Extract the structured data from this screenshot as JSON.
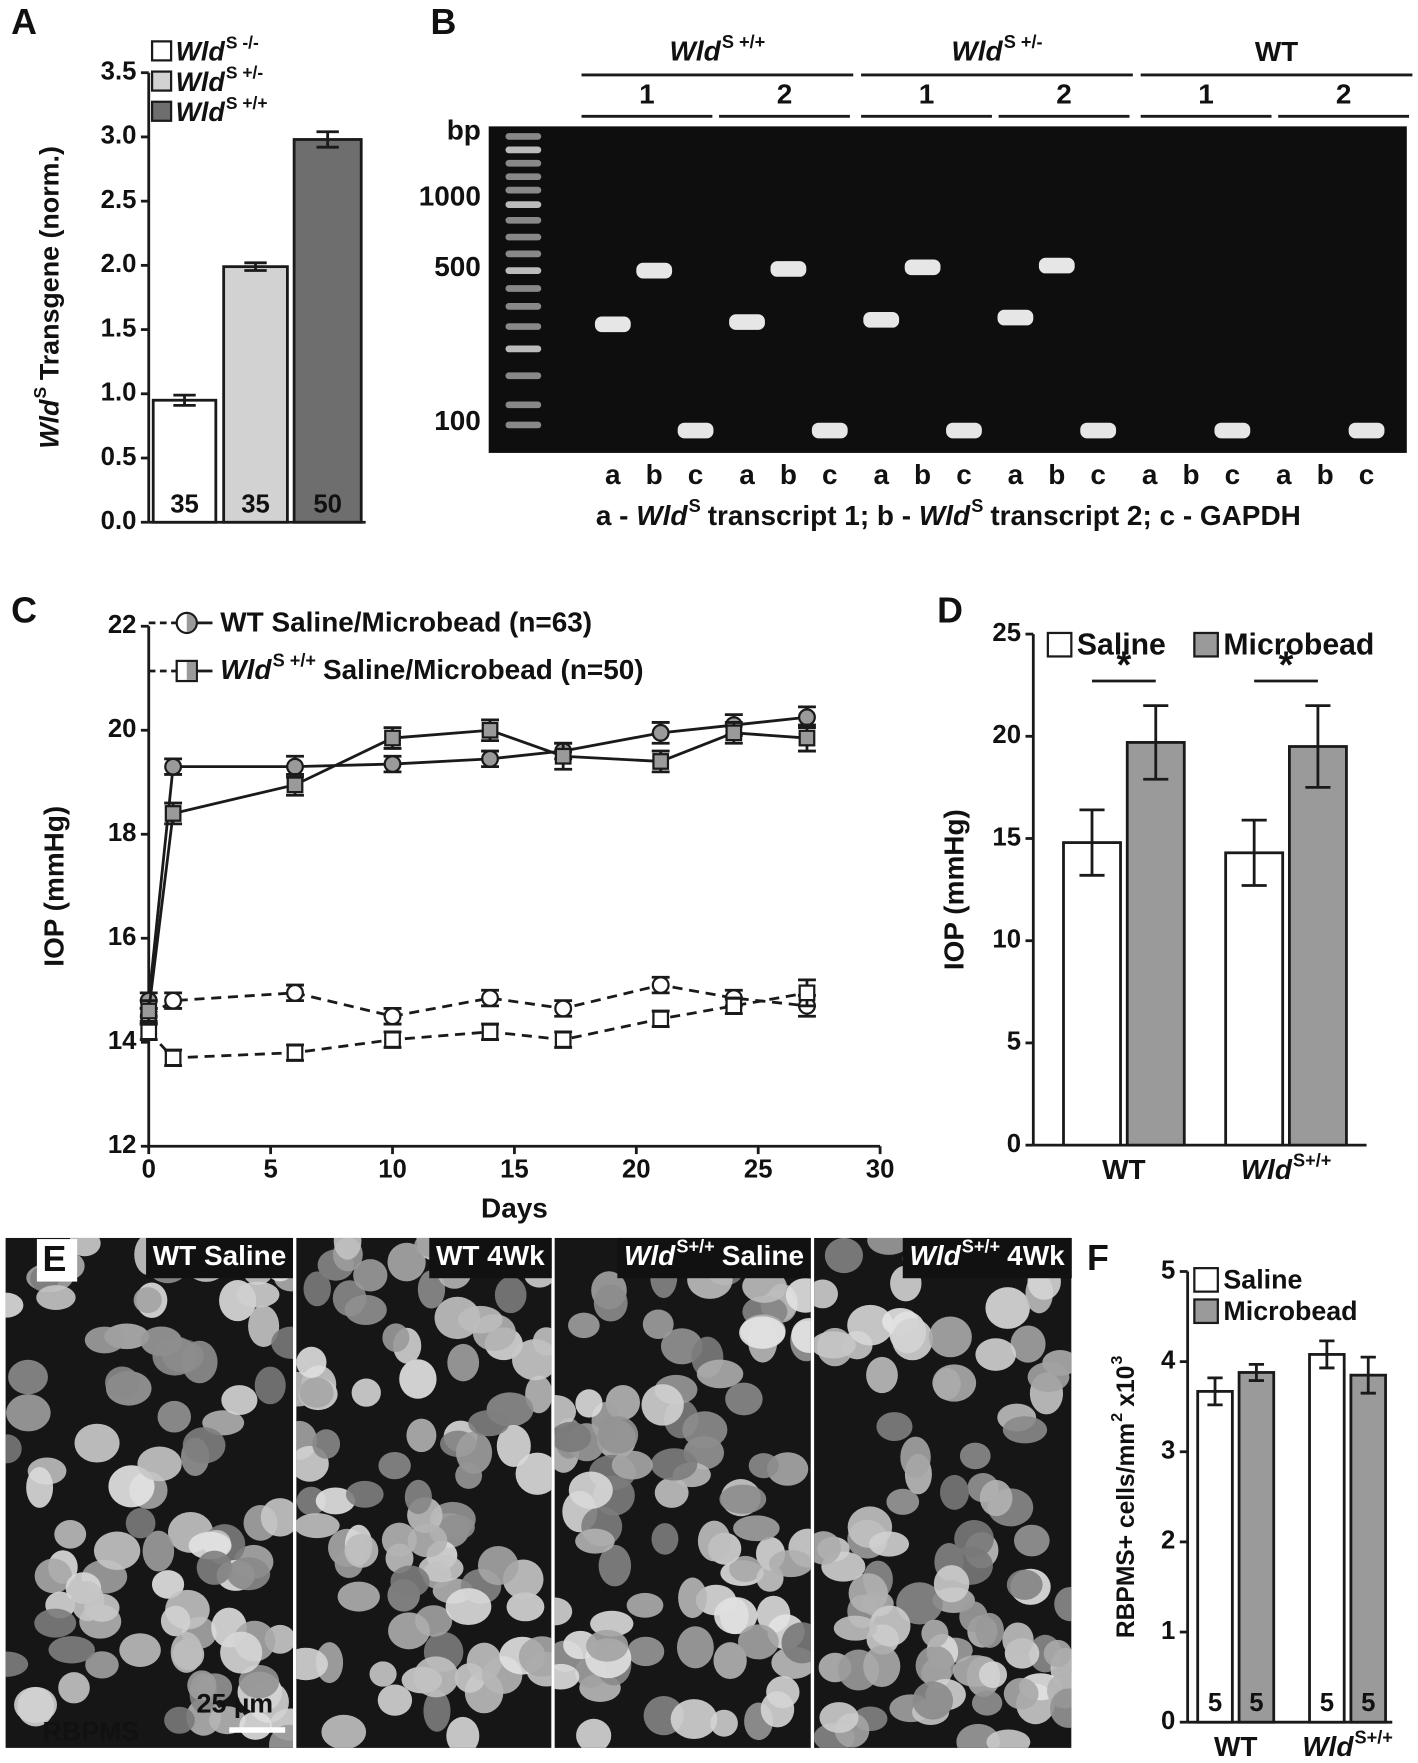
{
  "chart_data": [
    {
      "type": "bar",
      "panel_label": "A",
      "ylabel": [
        {
          "text": "Wld",
          "style": "italic"
        },
        {
          "text": "S",
          "style": "sup"
        },
        {
          "text": "Transgene (norm.)"
        }
      ],
      "series": [
        {
          "name": [
            {
              "text": "Wld",
              "style": "italic"
            },
            {
              "text": "S -/-",
              "style": "sup"
            }
          ],
          "color": "#ffffff",
          "values": [
            0.95
          ],
          "errors": [
            0.04
          ],
          "n": [
            35
          ]
        },
        {
          "name": [
            {
              "text": "Wld",
              "style": "italic"
            },
            {
              "text": "S +/-",
              "style": "sup"
            }
          ],
          "color": "#d2d2d2",
          "values": [
            1.99
          ],
          "errors": [
            0.03
          ],
          "n": [
            35
          ]
        },
        {
          "name": [
            {
              "text": "Wld",
              "style": "italic"
            },
            {
              "text": "S +/+",
              "style": "sup"
            }
          ],
          "color": "#6e6e6e",
          "values": [
            2.98
          ],
          "errors": [
            0.06
          ],
          "n": [
            50
          ]
        }
      ],
      "ylim": [
        0,
        3.5
      ],
      "yticks": [
        {
          "value": 0,
          "label": "0.0"
        },
        0.5,
        {
          "value": 1,
          "label": "1.0"
        },
        1.5,
        {
          "value": 2,
          "label": "2.0"
        },
        2.5,
        {
          "value": 3,
          "label": "3.0"
        },
        3.5
      ]
    },
    {
      "type": "line",
      "panel_label": "C",
      "xlabel": "Days",
      "ylabel": "IOP (mmHg)",
      "x": [
        0,
        1,
        6,
        10,
        14,
        17,
        21,
        24,
        27
      ],
      "xlim": [
        0,
        30
      ],
      "xticks": [
        0,
        5,
        10,
        15,
        20,
        25,
        30
      ],
      "ylim": [
        12,
        22
      ],
      "yticks": [
        12,
        14,
        16,
        18,
        20,
        22
      ],
      "series": [
        {
          "name": "WT Saline/Microbead (n=63)",
          "marker": "circle",
          "lines": [
            {
              "color": "#ffffff",
              "dashed": true,
              "values": [
                14.5,
                14.8,
                14.95,
                14.5,
                14.85,
                14.65,
                15.1,
                14.85,
                14.7
              ],
              "errors": [
                0.15,
                0.15,
                0.15,
                0.15,
                0.15,
                0.15,
                0.15,
                0.15,
                0.2
              ]
            },
            {
              "color": "#9a9a9a",
              "dashed": false,
              "values": [
                14.8,
                19.3,
                19.3,
                19.35,
                19.45,
                19.6,
                19.95,
                20.1,
                20.25
              ],
              "errors": [
                0.15,
                0.15,
                0.2,
                0.15,
                0.15,
                0.15,
                0.2,
                0.2,
                0.2
              ]
            }
          ]
        },
        {
          "name": [
            {
              "text": "Wld",
              "style": "italic"
            },
            {
              "text": "S +/+",
              "style": "sup"
            },
            {
              "text": "Saline/Microbead (n=50)"
            }
          ],
          "marker": "square",
          "lines": [
            {
              "color": "#ffffff",
              "dashed": true,
              "values": [
                14.2,
                13.7,
                13.8,
                14.05,
                14.2,
                14.05,
                14.45,
                14.7,
                14.95
              ],
              "errors": [
                0.15,
                0.15,
                0.15,
                0.15,
                0.15,
                0.15,
                0.15,
                0.15,
                0.25
              ]
            },
            {
              "color": "#9a9a9a",
              "dashed": false,
              "values": [
                14.6,
                18.4,
                18.95,
                19.85,
                20.0,
                19.5,
                19.4,
                19.95,
                19.85
              ],
              "errors": [
                0.2,
                0.2,
                0.2,
                0.2,
                0.2,
                0.25,
                0.2,
                0.2,
                0.25
              ]
            }
          ]
        }
      ]
    },
    {
      "type": "grouped_bar",
      "panel_label": "D",
      "ylabel": "IOP (mmHg)",
      "categories": [
        [
          {
            "text": "WT"
          }
        ],
        [
          {
            "text": "Wld",
            "style": "italic"
          },
          {
            "text": "S+/+",
            "style": "sup"
          }
        ]
      ],
      "series": [
        {
          "name": "Saline",
          "color": "#ffffff",
          "values": [
            14.8,
            14.3
          ],
          "errors": [
            1.6,
            1.6
          ]
        },
        {
          "name": "Microbead",
          "color": "#9a9a9a",
          "values": [
            19.7,
            19.5
          ],
          "errors": [
            1.8,
            2.0
          ]
        }
      ],
      "annotations": [
        "*",
        "*"
      ],
      "ylim": [
        0,
        25
      ],
      "yticks": [
        0,
        5,
        10,
        15,
        20,
        25
      ]
    },
    {
      "type": "grouped_bar",
      "panel_label": "F",
      "ylabel": [
        {
          "text": "RBPMS+ cells/mm"
        },
        {
          "text": "2",
          "style": "sup"
        },
        {
          "text": "x10"
        },
        {
          "text": "3",
          "style": "sup"
        }
      ],
      "categories": [
        [
          {
            "text": "WT"
          }
        ],
        [
          {
            "text": "Wld",
            "style": "italic"
          },
          {
            "text": "S+/+",
            "style": "sup"
          }
        ]
      ],
      "series": [
        {
          "name": "Saline",
          "color": "#ffffff",
          "values": [
            3.67,
            4.08
          ],
          "errors": [
            0.15,
            0.15
          ],
          "n": [
            5,
            5
          ]
        },
        {
          "name": "Microbead",
          "color": "#9a9a9a",
          "values": [
            3.88,
            3.85
          ],
          "errors": [
            0.09,
            0.2
          ],
          "n": [
            5,
            5
          ]
        }
      ],
      "ylim": [
        0,
        5
      ],
      "yticks": [
        0,
        1,
        2,
        3,
        4,
        5
      ]
    }
  ],
  "gel": {
    "panel_label": "B",
    "unit": "bp",
    "markers": [
      1000,
      500,
      100
    ],
    "groups": [
      {
        "name": [
          {
            "text": "Wld",
            "style": "italic"
          },
          {
            "text": "S +/+",
            "style": "sup"
          }
        ],
        "samples": [
          {
            "label": "1",
            "lanes": [
              "a",
              "b",
              "c"
            ]
          },
          {
            "label": "2",
            "lanes": [
              "a",
              "b",
              "c"
            ]
          }
        ]
      },
      {
        "name": [
          {
            "text": "Wld",
            "style": "italic"
          },
          {
            "text": "S +/-",
            "style": "sup"
          }
        ],
        "samples": [
          {
            "label": "1",
            "lanes": [
              "a",
              "b",
              "c"
            ]
          },
          {
            "label": "2",
            "lanes": [
              "a",
              "b",
              "c"
            ]
          }
        ]
      },
      {
        "name": "WT",
        "samples": [
          {
            "label": "1",
            "lanes": [
              "a",
              "b",
              "c"
            ]
          },
          {
            "label": "2",
            "lanes": [
              "a",
              "b",
              "c"
            ]
          }
        ]
      }
    ],
    "caption": [
      {
        "text": "a -"
      },
      {
        "text": "Wld",
        "style": "italic"
      },
      {
        "text": "S",
        "style": "sup"
      },
      {
        "text": "transcript 1; b -"
      },
      {
        "text": "Wld",
        "style": "italic"
      },
      {
        "text": "S",
        "style": "sup"
      },
      {
        "text": "transcript 2; c - GAPDH"
      }
    ]
  },
  "micrographs": {
    "panel_label": "E",
    "panels": [
      [
        {
          "text": "WT Saline"
        }
      ],
      [
        {
          "text": "WT 4Wk"
        }
      ],
      [
        {
          "text": "Wld",
          "style": "italic"
        },
        {
          "text": "S+/+",
          "style": "sup"
        },
        {
          "text": "Saline"
        }
      ],
      [
        {
          "text": "Wld",
          "style": "italic"
        },
        {
          "text": "S+/+",
          "style": "sup"
        },
        {
          "text": "4Wk"
        }
      ]
    ],
    "stain": "RBPMS",
    "scale_bar": "25 µm"
  }
}
